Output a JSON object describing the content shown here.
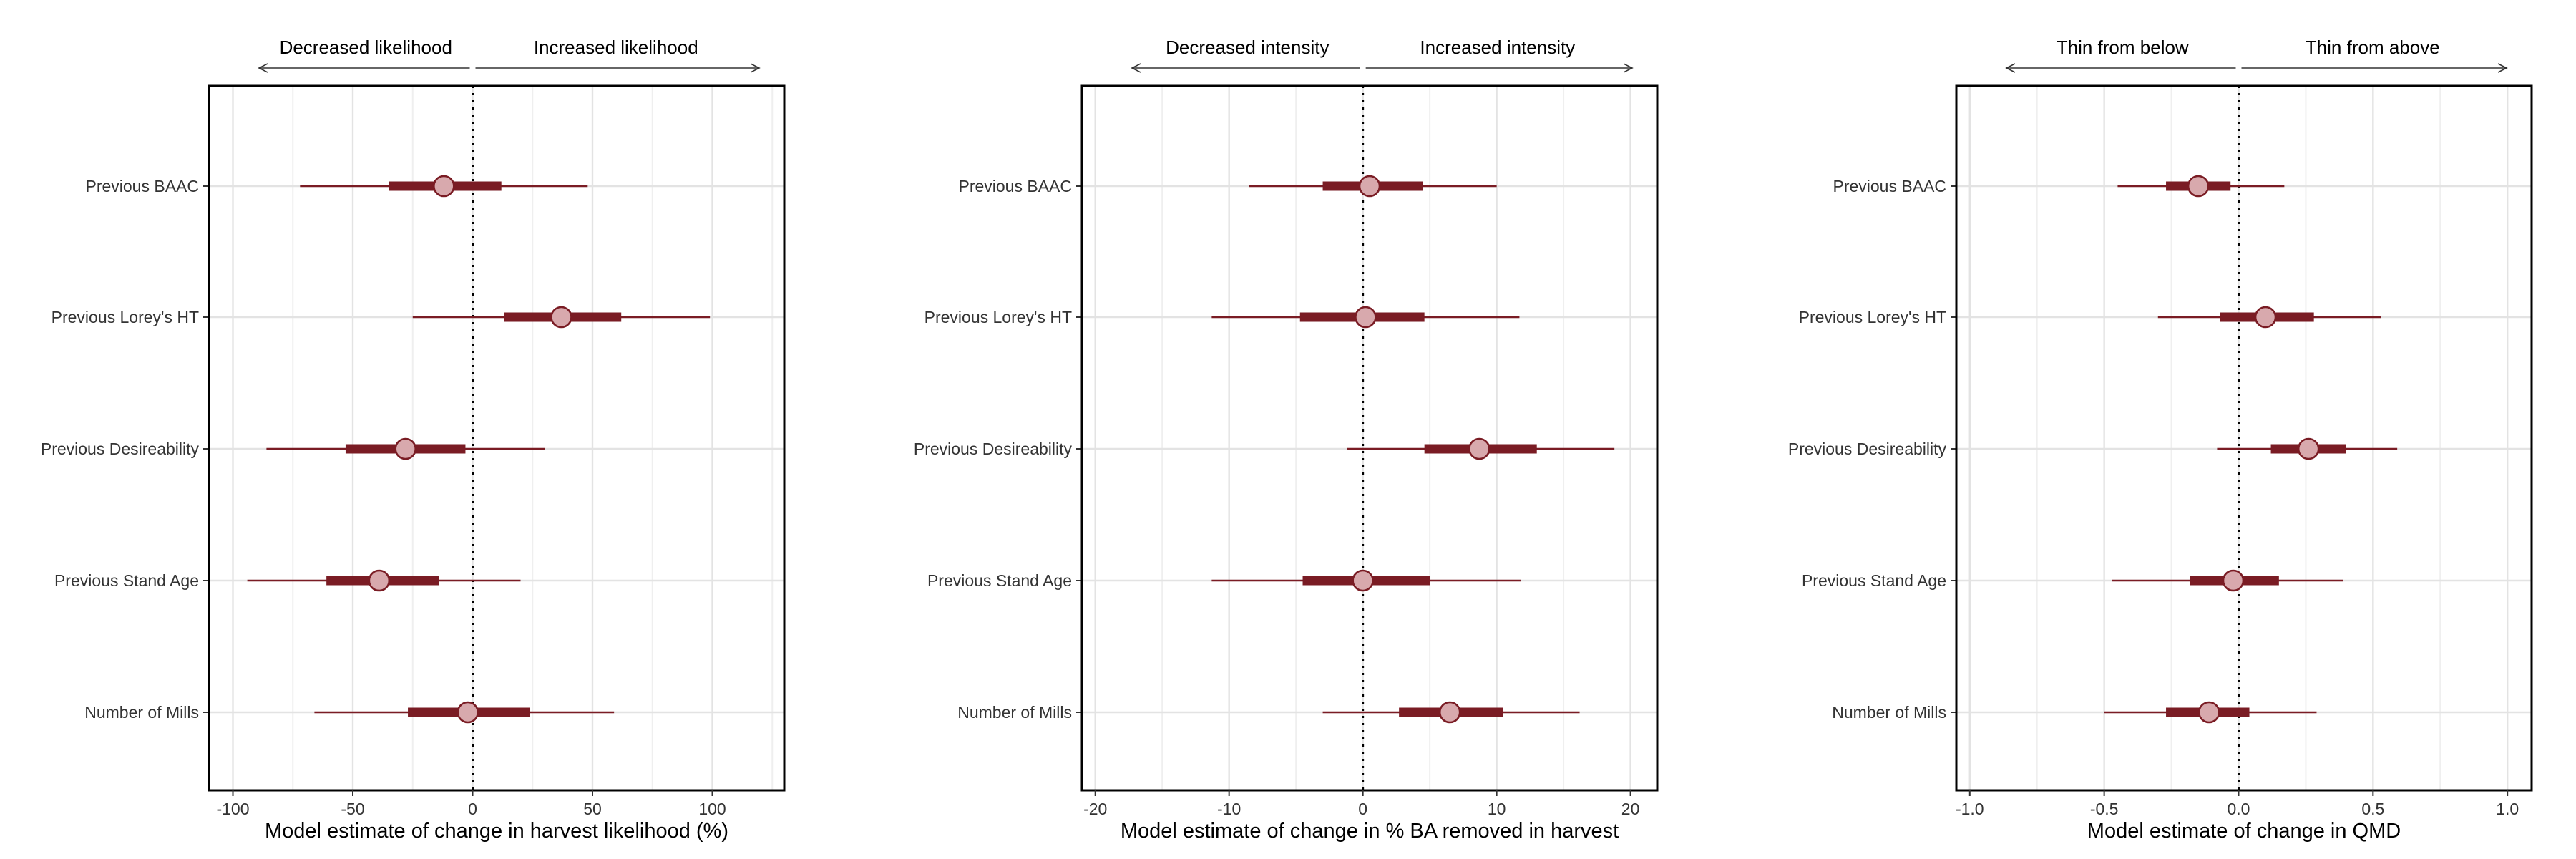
{
  "chart_data": [
    {
      "type": "forest",
      "xlabel": "Model estimate of change in harvest likelihood (%)",
      "xlim": [
        -110,
        130
      ],
      "xticks": [
        -100,
        -50,
        0,
        50,
        100
      ],
      "xtick_labels": [
        "-100",
        "-50",
        "0",
        "50",
        "100"
      ],
      "arrow_labels": {
        "left": "Decreased likelihood",
        "right": "Increased likelihood"
      },
      "reference_line": 0,
      "categories": [
        "Previous BAAC",
        "Previous Lorey's HT",
        "Previous Desireability",
        "Previous Stand Age",
        "Number of Mills"
      ],
      "estimates": [
        -12,
        37,
        -28,
        -39,
        -2
      ],
      "inner_interval": [
        [
          -35,
          12
        ],
        [
          13,
          62
        ],
        [
          -53,
          -3
        ],
        [
          -61,
          -14
        ],
        [
          -27,
          24
        ]
      ],
      "outer_interval": [
        [
          -72,
          48
        ],
        [
          -25,
          99
        ],
        [
          -86,
          30
        ],
        [
          -94,
          20
        ],
        [
          -66,
          59
        ]
      ],
      "grid": true
    },
    {
      "type": "forest",
      "xlabel": "Model estimate of change in % BA removed in harvest",
      "xlim": [
        -21,
        22
      ],
      "xticks": [
        -20,
        -10,
        0,
        10,
        20
      ],
      "xtick_labels": [
        "-20",
        "-10",
        "0",
        "10",
        "20"
      ],
      "arrow_labels": {
        "left": "Decreased intensity",
        "right": "Increased intensity"
      },
      "reference_line": 0,
      "categories": [
        "Previous BAAC",
        "Previous Lorey's HT",
        "Previous Desireability",
        "Previous Stand Age",
        "Number of Mills"
      ],
      "estimates": [
        0.5,
        0.2,
        8.7,
        0,
        6.5
      ],
      "inner_interval": [
        [
          -3.0,
          4.5
        ],
        [
          -4.7,
          4.6
        ],
        [
          4.6,
          13
        ],
        [
          -4.5,
          5.0
        ],
        [
          2.7,
          10.5
        ]
      ],
      "outer_interval": [
        [
          -8.5,
          10
        ],
        [
          -11.3,
          11.7
        ],
        [
          -1.2,
          18.8
        ],
        [
          -11.3,
          11.8
        ],
        [
          -3.0,
          16.2
        ]
      ],
      "grid": true
    },
    {
      "type": "forest",
      "xlabel": "Model estimate of change in QMD",
      "xlim": [
        -1.05,
        1.09
      ],
      "xticks": [
        -1.0,
        -0.5,
        0.0,
        0.5,
        1.0
      ],
      "xtick_labels": [
        "-1.0",
        "-0.5",
        "0.0",
        "0.5",
        "1.0"
      ],
      "arrow_labels": {
        "left": "Thin from below",
        "right": "Thin from above"
      },
      "reference_line": 0,
      "categories": [
        "Previous BAAC",
        "Previous Lorey's HT",
        "Previous Desireability",
        "Previous Stand Age",
        "Number of Mills"
      ],
      "estimates": [
        -0.15,
        0.1,
        0.26,
        -0.02,
        -0.11
      ],
      "inner_interval": [
        [
          -0.27,
          -0.03
        ],
        [
          -0.07,
          0.28
        ],
        [
          0.12,
          0.4
        ],
        [
          -0.18,
          0.15
        ],
        [
          -0.27,
          0.04
        ]
      ],
      "outer_interval": [
        [
          -0.45,
          0.17
        ],
        [
          -0.3,
          0.53
        ],
        [
          -0.08,
          0.59
        ],
        [
          -0.47,
          0.39
        ],
        [
          -0.5,
          0.29
        ]
      ],
      "grid": true
    }
  ],
  "colors": {
    "interval": "#7a1c24",
    "point_fill": "#d8a9ad",
    "grid": "#e3e3e3",
    "frame": "#000000",
    "text": "#333333"
  }
}
